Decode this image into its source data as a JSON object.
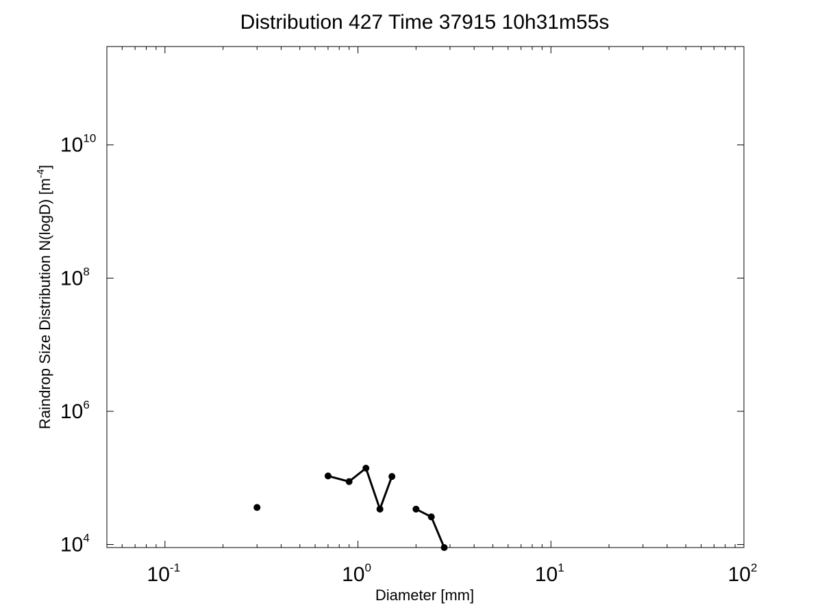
{
  "chart_data": {
    "type": "line",
    "title": "Distribution 427 Time 37915 10h31m55s",
    "xlabel": "Diameter [mm]",
    "ylabel_main": "Raindrop Size Distribution N(logD) [m",
    "ylabel_exp": "-4",
    "ylabel_close": "]",
    "x_scale": "log",
    "y_scale": "log",
    "xlim": [
      0.05,
      100
    ],
    "ylim": [
      9000,
      300000000000
    ],
    "x_ticks": [
      {
        "value": 0.1,
        "base": "10",
        "exp": "-1"
      },
      {
        "value": 1,
        "base": "10",
        "exp": "0"
      },
      {
        "value": 10,
        "base": "10",
        "exp": "1"
      },
      {
        "value": 100,
        "base": "10",
        "exp": "2"
      }
    ],
    "y_ticks": [
      {
        "value": 10000,
        "base": "10",
        "exp": "4"
      },
      {
        "value": 1000000,
        "base": "10",
        "exp": "6"
      },
      {
        "value": 100000000,
        "base": "10",
        "exp": "8"
      },
      {
        "value": 10000000000,
        "base": "10",
        "exp": "10"
      }
    ],
    "grid": false,
    "series": [
      {
        "x": [
          0.3
        ],
        "y": [
          36000
        ]
      },
      {
        "x": [
          0.7,
          0.9,
          1.1,
          1.3,
          1.5
        ],
        "y": [
          107000,
          88000,
          140000,
          34000,
          105000
        ]
      },
      {
        "x": [
          2.0,
          2.4,
          2.8
        ],
        "y": [
          34000,
          26000,
          9000
        ]
      }
    ],
    "line_color": "#000000",
    "marker_color": "#000000"
  }
}
